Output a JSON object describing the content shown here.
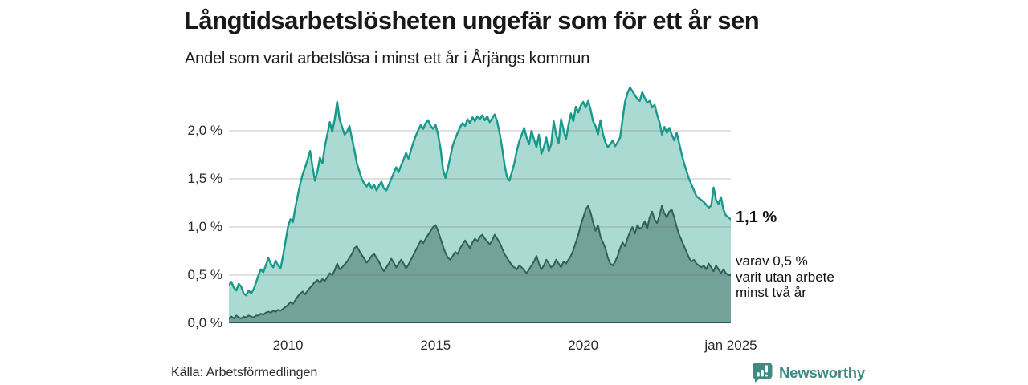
{
  "header": {
    "title": "Långtidsarbetslösheten ungefär som för ett år sen",
    "subtitle": "Andel som varit arbetslösa i minst ett år i Årjängs kommun"
  },
  "annotations": {
    "total_end_label": "1,1 %",
    "subset_end_label": "varav 0,5 %\nvarit utan arbete\nminst två år"
  },
  "footer": {
    "source": "Källa: Arbetsförmedlingen",
    "brand": "Newsworthy",
    "brand_color": "#3e8b82"
  },
  "chart_data": {
    "type": "area",
    "title": "Långtidsarbetslösheten ungefär som för ett år sen",
    "subtitle": "Andel som varit arbetslösa i minst ett år i Årjängs kommun",
    "x_unit": "month",
    "x_range": [
      "2008-01",
      "2025-01"
    ],
    "ylim": [
      0,
      2.5
    ],
    "grid": true,
    "y_ticks": [
      {
        "value": 0.0,
        "label": "0,0 %"
      },
      {
        "value": 0.5,
        "label": "0,5 %"
      },
      {
        "value": 1.0,
        "label": "1,0 %"
      },
      {
        "value": 1.5,
        "label": "1,5 %"
      },
      {
        "value": 2.0,
        "label": "2,0 %"
      }
    ],
    "x_ticks": [
      {
        "index": 24,
        "label": "2010"
      },
      {
        "index": 84,
        "label": "2015"
      },
      {
        "index": 144,
        "label": "2020"
      },
      {
        "index": 204,
        "label": "jan 2025"
      }
    ],
    "grid_color": "#d9d9d9",
    "baseline_color": "#2e5a54",
    "series": [
      {
        "name": "Andel arbetslösa minst ett år",
        "line_color": "#18998b",
        "fill_color": "#abdad2",
        "end_value_pct": 1.1,
        "values": [
          0.4,
          0.43,
          0.37,
          0.34,
          0.41,
          0.38,
          0.31,
          0.29,
          0.34,
          0.31,
          0.35,
          0.42,
          0.5,
          0.56,
          0.53,
          0.6,
          0.68,
          0.62,
          0.58,
          0.65,
          0.6,
          0.57,
          0.7,
          0.85,
          1.0,
          1.08,
          1.05,
          1.2,
          1.33,
          1.45,
          1.55,
          1.62,
          1.7,
          1.79,
          1.62,
          1.48,
          1.58,
          1.72,
          1.66,
          1.84,
          1.96,
          2.09,
          1.99,
          2.12,
          2.3,
          2.12,
          2.04,
          1.96,
          1.99,
          2.05,
          1.92,
          1.8,
          1.66,
          1.58,
          1.5,
          1.45,
          1.42,
          1.46,
          1.4,
          1.44,
          1.38,
          1.43,
          1.47,
          1.4,
          1.38,
          1.44,
          1.5,
          1.56,
          1.62,
          1.57,
          1.64,
          1.7,
          1.77,
          1.71,
          1.8,
          1.88,
          1.95,
          2.01,
          2.06,
          2.02,
          2.08,
          2.11,
          2.05,
          2.02,
          2.06,
          1.96,
          1.82,
          1.6,
          1.51,
          1.61,
          1.73,
          1.85,
          1.92,
          1.98,
          2.04,
          2.08,
          2.05,
          2.12,
          2.08,
          2.14,
          2.1,
          2.15,
          2.12,
          2.16,
          2.11,
          2.15,
          2.09,
          2.13,
          2.17,
          2.1,
          1.98,
          1.83,
          1.65,
          1.52,
          1.48,
          1.57,
          1.66,
          1.79,
          1.89,
          1.96,
          2.03,
          1.93,
          1.86,
          2.0,
          1.91,
          1.83,
          1.96,
          1.76,
          1.83,
          1.93,
          1.79,
          1.86,
          2.1,
          1.96,
          1.87,
          2.12,
          2.01,
          1.91,
          2.06,
          2.18,
          2.1,
          2.25,
          2.19,
          2.26,
          2.3,
          2.24,
          2.31,
          2.22,
          2.1,
          2.05,
          1.96,
          2.11,
          1.97,
          1.88,
          1.83,
          1.86,
          1.9,
          1.84,
          1.88,
          1.93,
          2.12,
          2.3,
          2.39,
          2.45,
          2.41,
          2.37,
          2.33,
          2.31,
          2.4,
          2.34,
          2.29,
          2.31,
          2.24,
          2.27,
          2.17,
          2.09,
          1.96,
          2.04,
          1.98,
          2.03,
          1.96,
          1.9,
          1.98,
          1.87,
          1.76,
          1.66,
          1.58,
          1.5,
          1.44,
          1.38,
          1.32,
          1.3,
          1.28,
          1.26,
          1.23,
          1.2,
          1.22,
          1.41,
          1.28,
          1.24,
          1.31,
          1.18,
          1.12,
          1.1,
          1.08
        ]
      },
      {
        "name": "varav utan arbete minst två år",
        "line_color": "#335f59",
        "fill_color": "#73a29b",
        "end_value_pct": 0.5,
        "values": [
          0.05,
          0.07,
          0.05,
          0.08,
          0.06,
          0.05,
          0.07,
          0.06,
          0.08,
          0.07,
          0.06,
          0.08,
          0.08,
          0.1,
          0.09,
          0.11,
          0.12,
          0.11,
          0.13,
          0.12,
          0.14,
          0.13,
          0.15,
          0.17,
          0.19,
          0.22,
          0.2,
          0.24,
          0.28,
          0.31,
          0.33,
          0.3,
          0.34,
          0.37,
          0.4,
          0.43,
          0.45,
          0.42,
          0.46,
          0.44,
          0.48,
          0.52,
          0.5,
          0.55,
          0.62,
          0.56,
          0.58,
          0.61,
          0.64,
          0.68,
          0.72,
          0.78,
          0.8,
          0.75,
          0.71,
          0.67,
          0.63,
          0.66,
          0.7,
          0.72,
          0.68,
          0.64,
          0.58,
          0.54,
          0.58,
          0.62,
          0.67,
          0.63,
          0.58,
          0.62,
          0.66,
          0.62,
          0.57,
          0.61,
          0.66,
          0.71,
          0.76,
          0.81,
          0.86,
          0.83,
          0.88,
          0.92,
          0.96,
          1.0,
          1.02,
          0.96,
          0.88,
          0.8,
          0.73,
          0.68,
          0.66,
          0.7,
          0.74,
          0.72,
          0.78,
          0.82,
          0.86,
          0.82,
          0.78,
          0.84,
          0.88,
          0.85,
          0.9,
          0.92,
          0.88,
          0.85,
          0.82,
          0.86,
          0.92,
          0.88,
          0.84,
          0.78,
          0.72,
          0.68,
          0.64,
          0.6,
          0.58,
          0.56,
          0.6,
          0.58,
          0.55,
          0.52,
          0.56,
          0.6,
          0.64,
          0.7,
          0.62,
          0.56,
          0.6,
          0.66,
          0.62,
          0.58,
          0.6,
          0.66,
          0.62,
          0.58,
          0.64,
          0.62,
          0.66,
          0.7,
          0.76,
          0.84,
          0.92,
          1.02,
          1.1,
          1.18,
          1.22,
          1.15,
          1.05,
          0.96,
          1.02,
          0.9,
          0.84,
          0.78,
          0.68,
          0.62,
          0.6,
          0.64,
          0.7,
          0.78,
          0.84,
          0.8,
          0.88,
          0.95,
          1.0,
          0.93,
          1.02,
          0.98,
          1.0,
          1.06,
          0.98,
          1.1,
          1.16,
          1.08,
          1.04,
          1.12,
          1.22,
          1.14,
          1.1,
          1.16,
          1.18,
          1.1,
          1.0,
          0.92,
          0.86,
          0.8,
          0.74,
          0.68,
          0.64,
          0.66,
          0.62,
          0.6,
          0.58,
          0.6,
          0.56,
          0.62,
          0.58,
          0.54,
          0.6,
          0.56,
          0.52,
          0.56,
          0.52,
          0.5,
          0.5
        ]
      }
    ]
  }
}
